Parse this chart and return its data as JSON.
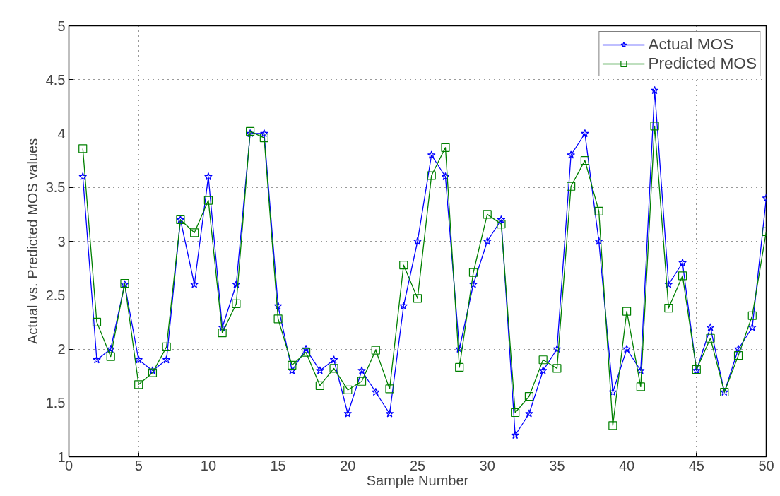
{
  "chart_data": {
    "type": "line",
    "xlabel": "Sample Number",
    "ylabel": "Actual vs. Predicted MOS values",
    "x": [
      1,
      2,
      3,
      4,
      5,
      6,
      7,
      8,
      9,
      10,
      11,
      12,
      13,
      14,
      15,
      16,
      17,
      18,
      19,
      20,
      21,
      22,
      23,
      24,
      25,
      26,
      27,
      28,
      29,
      30,
      31,
      32,
      33,
      34,
      35,
      36,
      37,
      38,
      39,
      40,
      41,
      42,
      43,
      44,
      45,
      46,
      47,
      48,
      49,
      50
    ],
    "series": [
      {
        "name": "Actual MOS",
        "color": "#0000ff",
        "marker": "star",
        "values": [
          3.6,
          1.9,
          2.0,
          2.6,
          1.9,
          1.8,
          1.9,
          3.2,
          2.6,
          3.6,
          2.2,
          2.6,
          4.0,
          4.0,
          2.4,
          1.8,
          2.0,
          1.8,
          1.9,
          1.4,
          1.8,
          1.6,
          1.4,
          2.4,
          3.0,
          3.8,
          3.6,
          2.0,
          2.6,
          3.0,
          3.2,
          1.2,
          1.4,
          1.8,
          2.0,
          3.8,
          4.0,
          3.0,
          1.6,
          2.0,
          1.8,
          4.4,
          2.6,
          2.8,
          1.8,
          2.2,
          1.6,
          2.0,
          2.2,
          3.4
        ]
      },
      {
        "name": "Predicted MOS",
        "color": "#008000",
        "marker": "square",
        "values": [
          3.86,
          2.25,
          1.93,
          2.61,
          1.67,
          1.78,
          2.02,
          3.2,
          3.08,
          3.38,
          2.15,
          2.42,
          4.02,
          3.96,
          2.28,
          1.85,
          1.97,
          1.66,
          1.82,
          1.62,
          1.7,
          1.99,
          1.63,
          2.78,
          2.47,
          3.61,
          3.87,
          1.83,
          2.71,
          3.25,
          3.16,
          1.41,
          1.56,
          1.9,
          1.82,
          3.51,
          3.75,
          3.28,
          1.29,
          2.35,
          1.65,
          4.07,
          2.38,
          2.68,
          1.81,
          2.1,
          1.6,
          1.94,
          2.31,
          3.09
        ]
      }
    ],
    "xlim": [
      0,
      50
    ],
    "xticks": [
      0,
      5,
      10,
      15,
      20,
      25,
      30,
      35,
      40,
      45,
      50
    ],
    "ylim": [
      1,
      5
    ],
    "yticks": [
      1,
      1.5,
      2,
      2.5,
      3,
      3.5,
      4,
      4.5,
      5
    ],
    "grid": true,
    "legend": "top right",
    "line_style": "solid"
  }
}
